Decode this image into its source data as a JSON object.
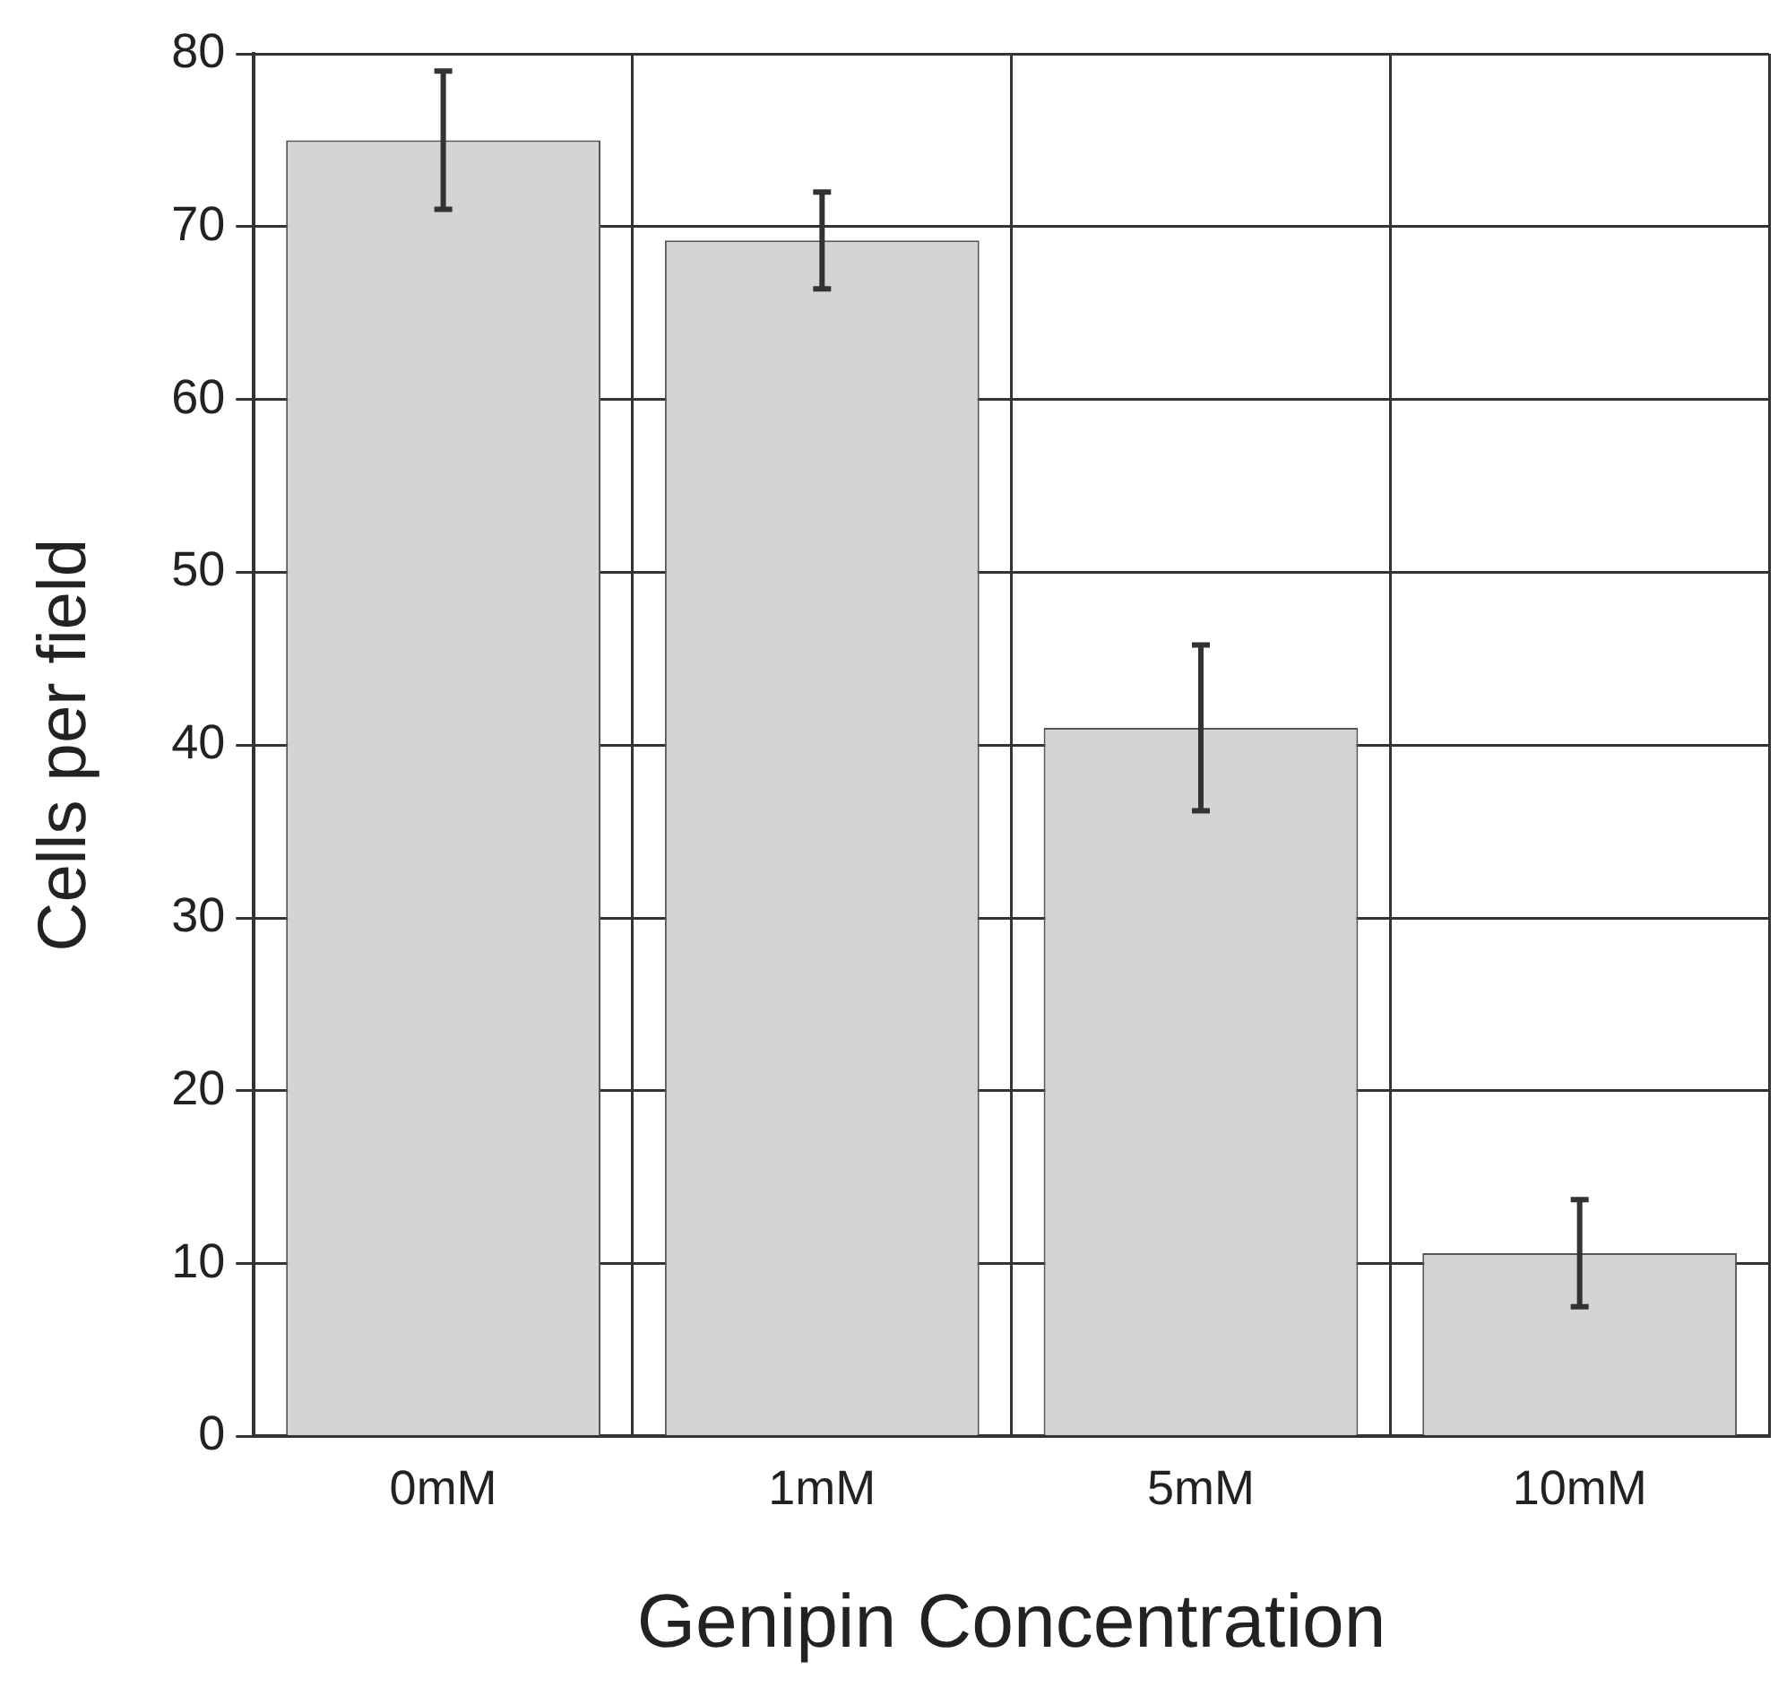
{
  "chart_data": {
    "type": "bar",
    "xlabel": "Genipin Concentration",
    "ylabel": "Cells per field",
    "categories": [
      "0mM",
      "1mM",
      "5mM",
      "10mM"
    ],
    "values": [
      75,
      69.2,
      41,
      10.6
    ],
    "errors": [
      4,
      2.8,
      4.8,
      3.1
    ],
    "color": "#d4d4d4",
    "ylim": [
      0,
      80
    ],
    "yticks": [
      0,
      10,
      20,
      30,
      40,
      50,
      60,
      70,
      80
    ],
    "grid": true,
    "legend": false
  }
}
